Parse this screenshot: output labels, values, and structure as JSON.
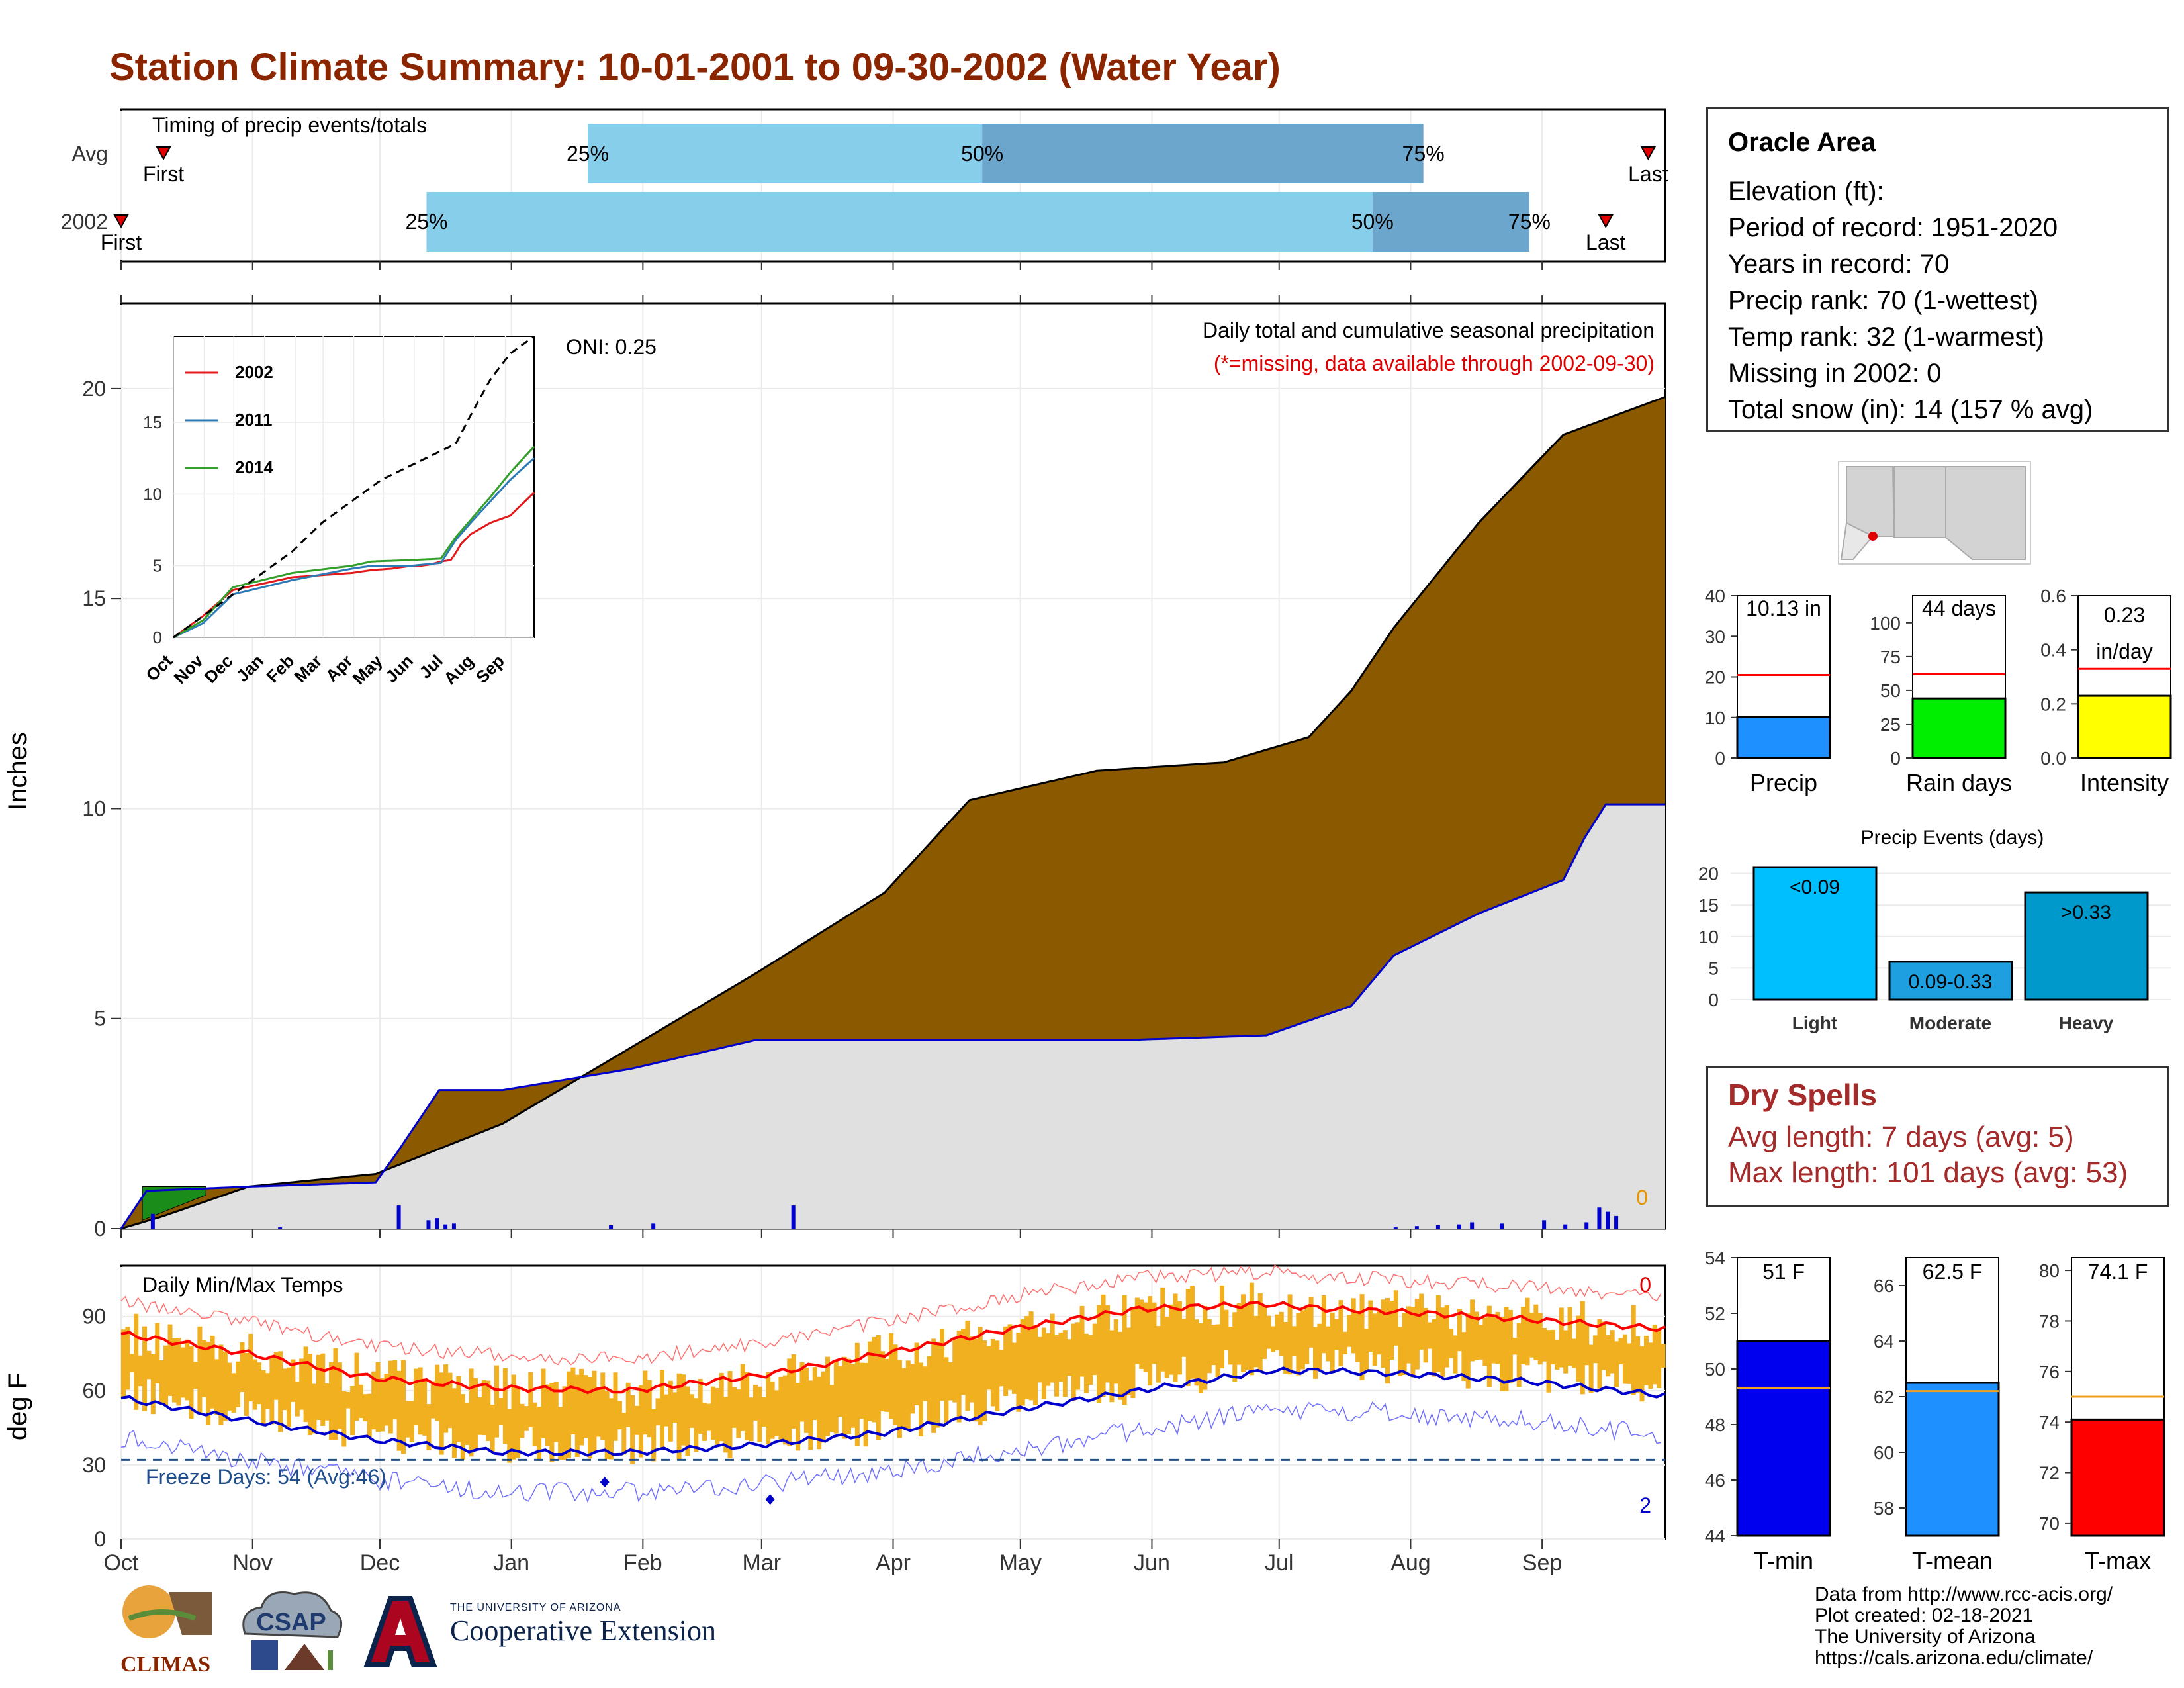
{
  "page": {
    "title": "Station Climate Summary: 10-01-2001 to 09-30-2002 (Water Year)"
  },
  "timing_panel": {
    "label": "Timing of precip events/totals",
    "rows": [
      {
        "name": "Avg",
        "first_label": "First",
        "last_label": "Last",
        "first_day": 10,
        "last_day": 360,
        "p25_day": 110,
        "p50_day": 203,
        "p75_day": 307,
        "p25_label": "25%",
        "p50_label": "50%",
        "p75_label": "75%"
      },
      {
        "name": "2002",
        "first_label": "First",
        "last_label": "Last",
        "first_day": 0,
        "last_day": 350,
        "p25_day": 72,
        "p50_day": 295,
        "p75_day": 332,
        "p25_label": "25%",
        "p50_label": "50%",
        "p75_label": "75%"
      }
    ]
  },
  "main_panel": {
    "ylabel": "Inches",
    "note": "Daily total and cumulative seasonal precipitation",
    "missing_note": "(*=missing, data available through 2002-09-30)",
    "oni": "ONI: 0.25",
    "missing_count": "0",
    "yticks": [
      "0",
      "5",
      "10",
      "15",
      "20"
    ]
  },
  "months": [
    "Oct",
    "Nov",
    "Dec",
    "Jan",
    "Feb",
    "Mar",
    "Apr",
    "May",
    "Jun",
    "Jul",
    "Aug",
    "Sep"
  ],
  "inset": {
    "months": [
      "Oct",
      "Nov",
      "Dec",
      "Jan",
      "Feb",
      "Mar",
      "Apr",
      "May",
      "Jun",
      "Jul",
      "Aug",
      "Sep"
    ],
    "yticks": [
      "0",
      "5",
      "10",
      "15"
    ],
    "series": [
      {
        "name": "2002",
        "color": "#e31a1c"
      },
      {
        "name": "2011",
        "color": "#2c7bb6"
      },
      {
        "name": "2014",
        "color": "#33a02c"
      }
    ]
  },
  "temp_panel": {
    "label": "Daily Min/Max Temps",
    "ylabel": "deg F",
    "freeze": "Freeze Days: 54 (Avg:46)",
    "top_count": "0",
    "bottom_count": "2",
    "yticks": [
      "0",
      "30",
      "60",
      "90"
    ]
  },
  "info": {
    "station": "Oracle Area",
    "lines": [
      "Elevation (ft):",
      "Period of record: 1951-2020",
      "Years in record: 70",
      "Precip rank: 70 (1-wettest)",
      "Temp rank: 32 (1-warmest)",
      "Missing in 2002: 0",
      "Total snow (in): 14 (157 % avg)"
    ]
  },
  "dry_spells": {
    "title": "Dry Spells",
    "avg": "Avg length: 7 days (avg: 5)",
    "max": "Max length: 101 days (avg: 53)"
  },
  "credits": [
    "Data from http://www.rcc-acis.org/",
    "Plot created: 02-18-2021",
    "The University of Arizona",
    "https://cals.arizona.edu/climate/"
  ],
  "logos": {
    "climas": "CLIMAS",
    "csap": "CSAP",
    "coop_univ": "THE UNIVERSITY OF ARIZONA",
    "coop_name": "Cooperative Extension"
  },
  "colors": {
    "title": "#8b2500",
    "cumulative_fill": "#8b5a00",
    "average_fill": "#e0e0e0",
    "average_line": "#0000cd",
    "daily_bars": "#0000cd",
    "temp_bars": "#f0b020",
    "tmax_line": "#ff0000",
    "tmin_line": "#0000cd"
  },
  "chart_data": [
    {
      "type": "area",
      "title": "Daily total and cumulative seasonal precipitation",
      "ylabel": "Inches",
      "ylim": [
        0,
        22
      ],
      "x_unit": "day of water year (Oct 1 = 0)",
      "series": [
        {
          "name": "2002",
          "x": [
            0,
            10,
            30,
            60,
            90,
            120,
            150,
            180,
            200,
            230,
            260,
            280,
            290,
            300,
            320,
            340,
            364
          ],
          "values": [
            0,
            0.3,
            1.0,
            1.3,
            2.5,
            4.3,
            6.1,
            8.0,
            10.2,
            10.9,
            11.1,
            11.7,
            12.8,
            14.3,
            16.8,
            18.9,
            19.8
          ]
        },
        {
          "name": "Average",
          "x": [
            0,
            6,
            30,
            60,
            65,
            75,
            90,
            120,
            150,
            180,
            210,
            240,
            270,
            290,
            300,
            320,
            340,
            345,
            350,
            364
          ],
          "values": [
            0,
            0.9,
            1.0,
            1.1,
            1.8,
            3.3,
            3.3,
            3.8,
            4.5,
            4.5,
            4.5,
            4.5,
            4.6,
            5.3,
            6.5,
            7.5,
            8.3,
            9.3,
            10.1,
            10.1
          ]
        }
      ]
    },
    {
      "type": "line",
      "title": "",
      "ylim": [
        0,
        21
      ],
      "x_unit": "day of water year",
      "series": [
        {
          "name": "2002",
          "x": [
            0,
            30,
            60,
            120,
            180,
            200,
            220,
            240,
            250,
            260,
            270,
            280,
            285,
            290,
            300,
            320,
            340,
            364
          ],
          "values": [
            0,
            1.5,
            3.3,
            4.2,
            4.5,
            4.7,
            4.8,
            5.0,
            5.0,
            5.1,
            5.3,
            5.4,
            5.9,
            6.5,
            7.2,
            8.0,
            8.5,
            10.1
          ]
        },
        {
          "name": "2011",
          "x": [
            0,
            30,
            60,
            120,
            180,
            200,
            240,
            270,
            285,
            300,
            320,
            340,
            364
          ],
          "values": [
            0,
            1.0,
            3.0,
            4.0,
            4.8,
            5.0,
            5.0,
            5.2,
            6.8,
            8.0,
            9.5,
            11.0,
            12.5
          ]
        },
        {
          "name": "2014",
          "x": [
            0,
            30,
            60,
            120,
            180,
            200,
            240,
            270,
            285,
            300,
            320,
            340,
            364
          ],
          "values": [
            0,
            1.2,
            3.5,
            4.5,
            5.0,
            5.3,
            5.4,
            5.5,
            7.0,
            8.2,
            9.8,
            11.5,
            13.3
          ]
        },
        {
          "name": "Average",
          "x": [
            0,
            30,
            60,
            90,
            120,
            150,
            180,
            210,
            240,
            270,
            285,
            300,
            320,
            340,
            364
          ],
          "values": [
            0,
            1.5,
            3.0,
            4.5,
            6.0,
            8.0,
            9.5,
            11.0,
            12.0,
            13.0,
            13.5,
            15.5,
            18.0,
            19.8,
            21.0
          ]
        }
      ]
    },
    {
      "type": "line",
      "title": "Daily Min/Max Temps",
      "ylabel": "deg F",
      "ylim": [
        0,
        110
      ],
      "x_unit": "day of water year",
      "series": [
        {
          "name": "Avg Tmax",
          "x": [
            0,
            30,
            60,
            90,
            120,
            150,
            180,
            210,
            240,
            270,
            285,
            300,
            330,
            364
          ],
          "values": [
            83,
            75,
            65,
            61,
            60,
            66,
            75,
            85,
            93,
            95,
            93,
            92,
            89,
            85
          ]
        },
        {
          "name": "Avg Tmin",
          "x": [
            0,
            30,
            60,
            90,
            120,
            150,
            180,
            210,
            240,
            270,
            285,
            300,
            330,
            364
          ],
          "values": [
            57,
            48,
            40,
            35,
            35,
            38,
            43,
            52,
            60,
            68,
            68,
            67,
            64,
            58
          ]
        },
        {
          "name": "Freeze line",
          "x": [
            0,
            364
          ],
          "values": [
            32,
            32
          ]
        }
      ]
    },
    {
      "type": "bar",
      "title": "",
      "categories": [
        "Precip",
        "Rain days",
        "Intensity"
      ],
      "series": [
        {
          "name": "2002",
          "values": [
            10.13,
            44,
            0.23
          ]
        },
        {
          "name": "Average",
          "values": [
            20.5,
            62,
            0.33
          ]
        }
      ],
      "value_labels": [
        "10.13 in",
        "44 days",
        "0.23 in/day"
      ],
      "ylims": [
        [
          0,
          40
        ],
        [
          0,
          120
        ],
        [
          0,
          0.6
        ]
      ]
    },
    {
      "type": "bar",
      "title": "Precip Events (days)",
      "categories": [
        "Light",
        "Moderate",
        "Heavy"
      ],
      "values": [
        21,
        6,
        17
      ],
      "value_labels": [
        "<0.09",
        "0.09-0.33",
        ">0.33"
      ],
      "ylim": [
        0,
        21
      ]
    },
    {
      "type": "bar",
      "title": "",
      "categories": [
        "T-min",
        "T-mean",
        "T-max"
      ],
      "series": [
        {
          "name": "2002",
          "values": [
            51,
            62.5,
            74.1
          ]
        },
        {
          "name": "Average",
          "values": [
            49.3,
            62.2,
            75
          ]
        }
      ],
      "value_labels": [
        "51 F",
        "62.5 F",
        "74.1 F"
      ],
      "ylims": [
        [
          44,
          54
        ],
        [
          57,
          67
        ],
        [
          69.5,
          80.5
        ]
      ]
    }
  ]
}
